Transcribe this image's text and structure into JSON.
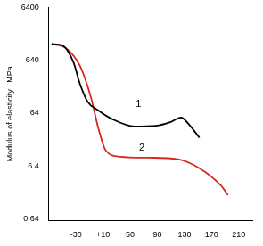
{
  "chart_data": {
    "type": "line",
    "y_label": "Modulus of elasticity , MPa",
    "log": "y",
    "grid": false,
    "xlim": [
      -70,
      230
    ],
    "xticks": [
      -30,
      {
        "value": 10,
        "label": "+10"
      },
      50,
      90,
      130,
      170,
      210
    ],
    "ylim": [
      0.64,
      6400
    ],
    "yticks": [
      0.64,
      6.4,
      64,
      640,
      6400
    ],
    "series": [
      {
        "color": "#000000",
        "x": [
          -66,
          -50,
          -34,
          -24,
          -13,
          3,
          24,
          56,
          88,
          109,
          125,
          136,
          152
        ],
        "values": [
          1300,
          1220,
          600,
          226,
          106,
          72,
          49,
          36,
          37,
          43,
          53,
          40,
          22
        ]
      },
      {
        "color": "#d9261c",
        "x": [
          -66,
          -45,
          -24,
          -8,
          3,
          14,
          35,
          77,
          120,
          152,
          184,
          194
        ],
        "values": [
          1300,
          1090,
          497,
          128,
          33,
          12.5,
          9.6,
          9.2,
          8.6,
          5.8,
          2.7,
          1.8
        ]
      }
    ],
    "annotations": [
      {
        "text": "1",
        "x": 62,
        "y": 95
      },
      {
        "text": "2",
        "x": 67,
        "y": 14
      }
    ]
  }
}
